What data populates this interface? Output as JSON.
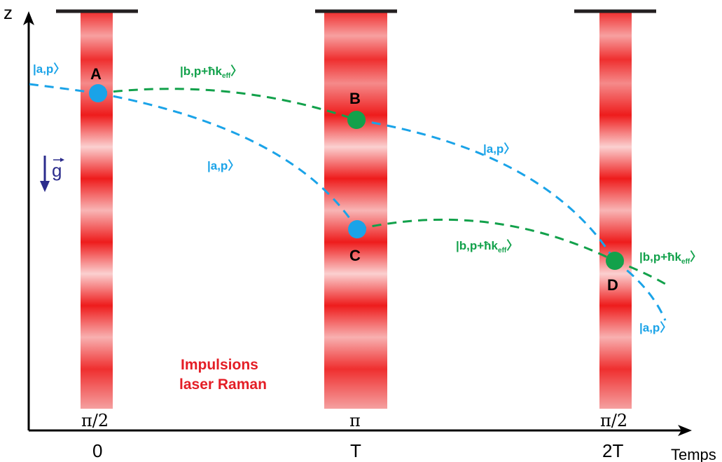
{
  "axes": {
    "y_label": "z",
    "x_label": "Temps",
    "ticks": [
      "0",
      "T",
      "2T"
    ]
  },
  "pulses": {
    "labels": [
      "π/2",
      "π",
      "π/2"
    ],
    "caption_line1": "Impulsions",
    "caption_line2": "laser Raman"
  },
  "points": {
    "A": "A",
    "B": "B",
    "C": "C",
    "D": "D"
  },
  "states": {
    "a_p": "|a,p〉",
    "b_p_hk_main": "|b,p+ħk",
    "b_p_hk_sub": "eff",
    "b_p_hk_close": "〉"
  },
  "gravity": {
    "label": "g"
  },
  "colors": {
    "blue": "#1aa3e8",
    "green": "#12a14b",
    "red": "#e41e26",
    "navy": "#2b2c8c"
  }
}
